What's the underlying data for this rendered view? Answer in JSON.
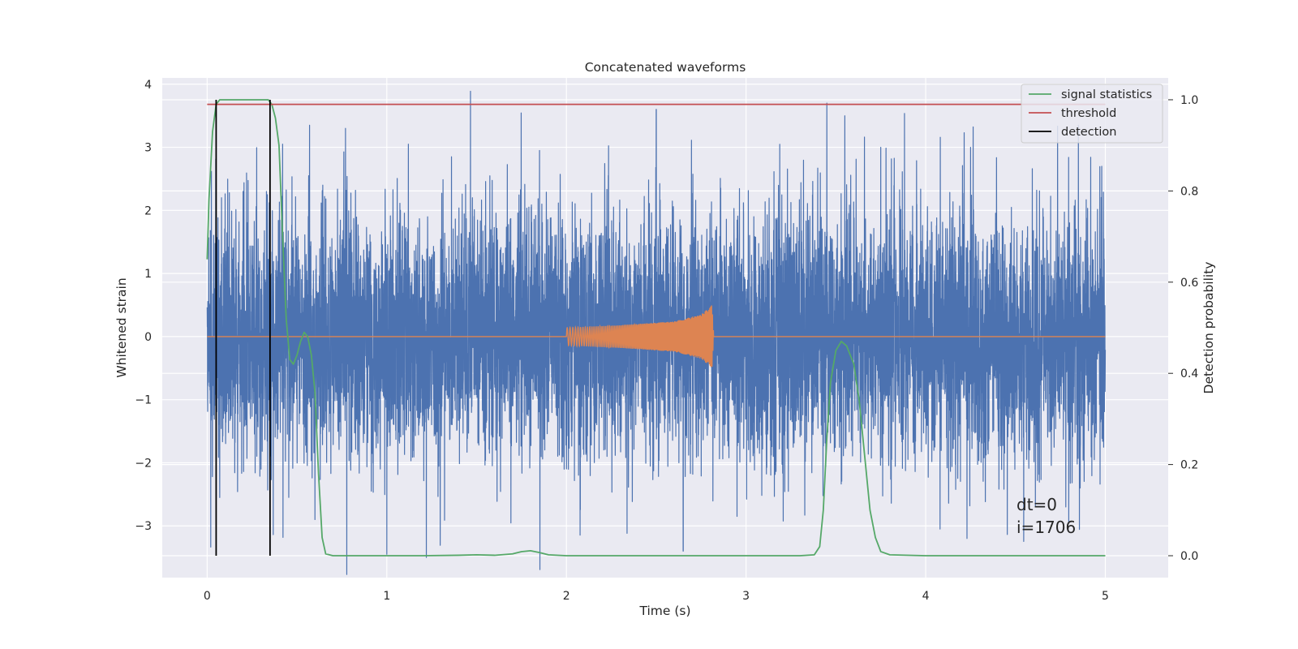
{
  "chart_data": {
    "type": "line",
    "title": "Concatenated waveforms",
    "xlabel": "Time (s)",
    "ylabel": "Whitened strain",
    "y2label": "Detection probability",
    "xlim": [
      -0.25,
      5.35
    ],
    "ylim": [
      -3.82,
      4.1
    ],
    "y2lim": [
      -0.048,
      1.048
    ],
    "x_ticks": [
      0,
      1,
      2,
      3,
      4,
      5
    ],
    "x_tick_labels": [
      "0",
      "1",
      "2",
      "3",
      "4",
      "5"
    ],
    "y_ticks": [
      -3,
      -2,
      -1,
      0,
      1,
      2,
      3,
      4
    ],
    "y_tick_labels": [
      "−3",
      "−2",
      "−1",
      "0",
      "1",
      "2",
      "3",
      "4"
    ],
    "y2_ticks": [
      0.0,
      0.2,
      0.4,
      0.6,
      0.8,
      1.0
    ],
    "y2_tick_labels": [
      "0.0",
      "0.2",
      "0.4",
      "0.6",
      "0.8",
      "1.0"
    ],
    "grid": true,
    "legend_position": "top-right",
    "legend": [
      {
        "label": "signal statistics",
        "color": "#55a868"
      },
      {
        "label": "threshold",
        "color": "#c44e52"
      },
      {
        "label": "detection",
        "color": "#000000"
      }
    ],
    "series": [
      {
        "role": "whitened-strain-noise",
        "axis": "left",
        "color": "#4c72b0",
        "x_range": [
          0,
          5
        ],
        "typical_amplitude": 1.0,
        "peaks": [
          {
            "x": 0.08,
            "y": 2.2
          },
          {
            "x": 0.2,
            "y": 2.3
          },
          {
            "x": 0.33,
            "y": 2.3
          },
          {
            "x": 0.42,
            "y": 3.05
          },
          {
            "x": 0.57,
            "y": 3.35
          },
          {
            "x": 0.77,
            "y": 3.3
          },
          {
            "x": 1.0,
            "y": 2.7
          },
          {
            "x": 1.12,
            "y": 3.05
          },
          {
            "x": 1.36,
            "y": 2.85
          },
          {
            "x": 1.85,
            "y": 2.95
          },
          {
            "x": 2.5,
            "y": 3.6
          },
          {
            "x": 3.45,
            "y": 3.7
          },
          {
            "x": 3.55,
            "y": 3.5
          },
          {
            "x": 3.75,
            "y": 3.0
          },
          {
            "x": 4.25,
            "y": 3.0
          },
          {
            "x": 4.85,
            "y": 3.35
          }
        ],
        "troughs": [
          {
            "x": 0.07,
            "y": -2.55
          },
          {
            "x": 0.3,
            "y": -2.1
          },
          {
            "x": 0.6,
            "y": -2.9
          },
          {
            "x": 1.0,
            "y": -3.45
          },
          {
            "x": 1.22,
            "y": -3.5
          },
          {
            "x": 2.65,
            "y": -3.4
          },
          {
            "x": 2.95,
            "y": -2.85
          },
          {
            "x": 4.08,
            "y": -3.05
          },
          {
            "x": 4.23,
            "y": -3.2
          },
          {
            "x": 4.78,
            "y": -2.7
          },
          {
            "x": 4.86,
            "y": -2.4
          }
        ]
      },
      {
        "role": "injected-chirp",
        "axis": "left",
        "color": "#dd8452",
        "x": [
          0,
          2.0,
          2.0,
          2.3,
          2.6,
          2.75,
          2.81,
          2.82,
          5
        ],
        "amplitude": [
          0,
          0,
          0.14,
          0.18,
          0.24,
          0.35,
          0.5,
          0,
          0
        ]
      },
      {
        "name": "signal statistics",
        "axis": "right",
        "color": "#55a868",
        "x": [
          0,
          0.01,
          0.03,
          0.05,
          0.07,
          0.09,
          0.12,
          0.15,
          0.2,
          0.25,
          0.3,
          0.34,
          0.36,
          0.38,
          0.4,
          0.42,
          0.44,
          0.46,
          0.48,
          0.5,
          0.52,
          0.54,
          0.56,
          0.58,
          0.6,
          0.62,
          0.64,
          0.66,
          0.7,
          0.8,
          1.0,
          1.2,
          1.4,
          1.5,
          1.6,
          1.7,
          1.75,
          1.8,
          1.85,
          1.9,
          2.0,
          2.5,
          3.0,
          3.3,
          3.38,
          3.41,
          3.43,
          3.45,
          3.47,
          3.5,
          3.53,
          3.56,
          3.6,
          3.63,
          3.66,
          3.69,
          3.72,
          3.75,
          3.8,
          4.0,
          4.5,
          5.0
        ],
        "y": [
          0.65,
          0.78,
          0.93,
          0.99,
          1.0,
          1.0,
          1.0,
          1.0,
          1.0,
          1.0,
          1.0,
          1.0,
          0.99,
          0.96,
          0.9,
          0.7,
          0.52,
          0.43,
          0.42,
          0.44,
          0.47,
          0.49,
          0.48,
          0.44,
          0.36,
          0.18,
          0.04,
          0.004,
          0.0,
          0.0,
          0.0,
          0.0,
          0.001,
          0.002,
          0.001,
          0.004,
          0.009,
          0.011,
          0.007,
          0.002,
          0.0,
          0.0,
          0.0,
          0.0,
          0.002,
          0.02,
          0.1,
          0.26,
          0.38,
          0.45,
          0.47,
          0.46,
          0.42,
          0.34,
          0.22,
          0.1,
          0.04,
          0.009,
          0.002,
          0.0,
          0.0,
          0.0
        ]
      },
      {
        "name": "threshold",
        "axis": "right",
        "color": "#c44e52",
        "x": [
          0,
          5
        ],
        "y": [
          0.99,
          0.99
        ]
      },
      {
        "name": "detection",
        "axis": "right",
        "color": "#000000",
        "type": "vlines",
        "x": [
          0.05,
          0.35
        ],
        "y_range": [
          0.0,
          1.0
        ]
      }
    ],
    "annotation_lines": [
      "dt=0",
      "i=1706"
    ]
  }
}
